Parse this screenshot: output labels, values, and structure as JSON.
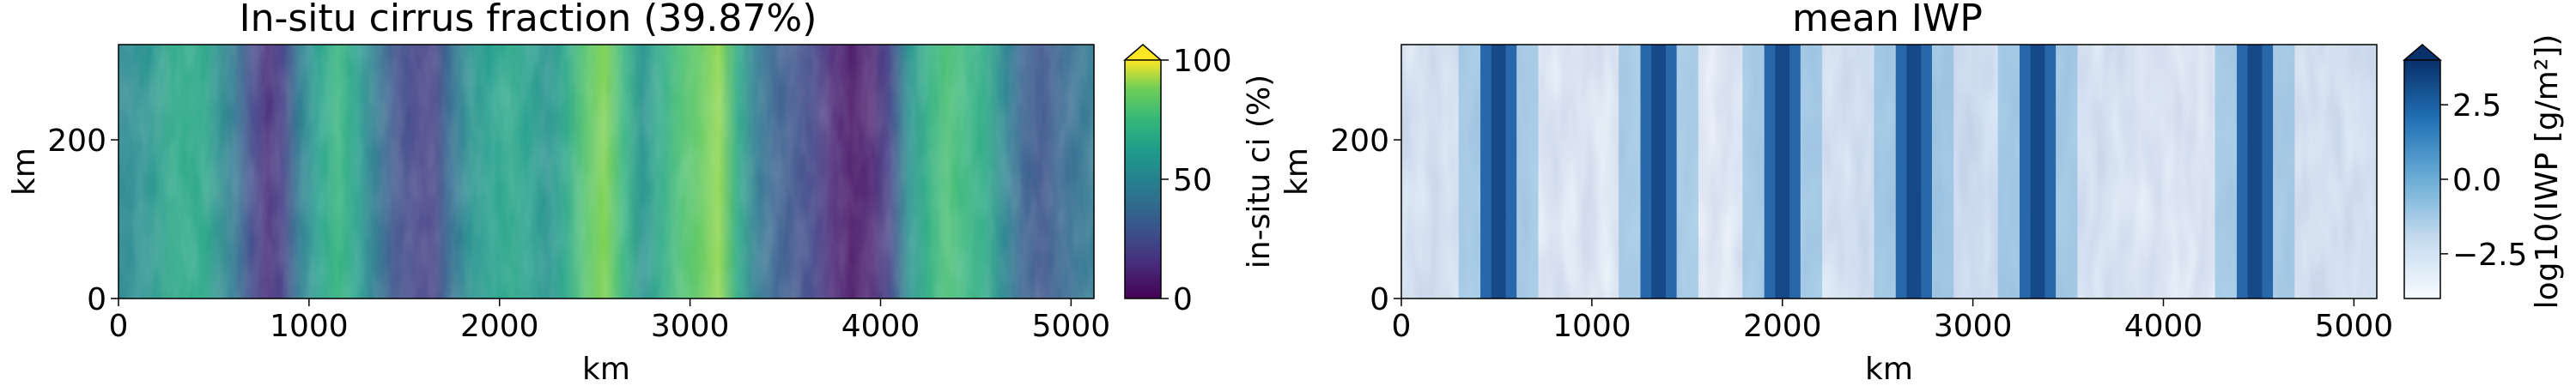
{
  "chart_data": [
    {
      "type": "heatmap",
      "title": "In-situ cirrus fraction (39.87%)",
      "xlabel": "km",
      "ylabel": "km",
      "xlim": [
        0,
        5120
      ],
      "ylim": [
        0,
        320
      ],
      "xticks": [
        0,
        1000,
        2000,
        3000,
        4000,
        5000
      ],
      "yticks": [
        0,
        200
      ],
      "colormap": "viridis",
      "colorbar": {
        "label": "in-situ ci (%)",
        "range": [
          0,
          100
        ],
        "ticks": [
          0,
          50,
          100
        ],
        "extend": "max"
      },
      "column_profile": {
        "x": [
          0,
          150,
          300,
          450,
          600,
          700,
          780,
          860,
          950,
          1050,
          1150,
          1250,
          1350,
          1450,
          1550,
          1650,
          1750,
          1850,
          1950,
          2050,
          2150,
          2250,
          2350,
          2450,
          2550,
          2650,
          2750,
          2850,
          2950,
          3050,
          3150,
          3250,
          3350,
          3450,
          3550,
          3650,
          3750,
          3850,
          3950,
          4050,
          4150,
          4250,
          4350,
          4450,
          4550,
          4650,
          4750,
          4850,
          4950,
          5120
        ],
        "values": [
          45,
          50,
          60,
          58,
          40,
          22,
          12,
          18,
          40,
          55,
          65,
          55,
          40,
          25,
          20,
          18,
          35,
          50,
          55,
          58,
          55,
          50,
          58,
          72,
          80,
          65,
          50,
          60,
          70,
          75,
          82,
          60,
          40,
          30,
          25,
          20,
          10,
          5,
          8,
          20,
          50,
          62,
          70,
          65,
          60,
          45,
          30,
          25,
          32,
          40
        ]
      }
    },
    {
      "type": "heatmap",
      "title": "mean IWP",
      "xlabel": "km",
      "ylabel": "km",
      "xlim": [
        0,
        5120
      ],
      "ylim": [
        0,
        320
      ],
      "xticks": [
        0,
        1000,
        2000,
        3000,
        4000,
        5000
      ],
      "yticks": [
        0,
        200
      ],
      "colormap": "Blues",
      "colorbar": {
        "label": "log10(IWP [g/m²])",
        "range": [
          -4,
          4
        ],
        "ticks": [
          -2.5,
          0.0,
          2.5
        ],
        "tick_labels": [
          "−2.5",
          "0.0",
          "2.5"
        ],
        "extend": "max"
      },
      "band_centers_km": [
        510,
        1350,
        2000,
        2690,
        3340,
        4480
      ],
      "band_width_km": 190
    }
  ]
}
